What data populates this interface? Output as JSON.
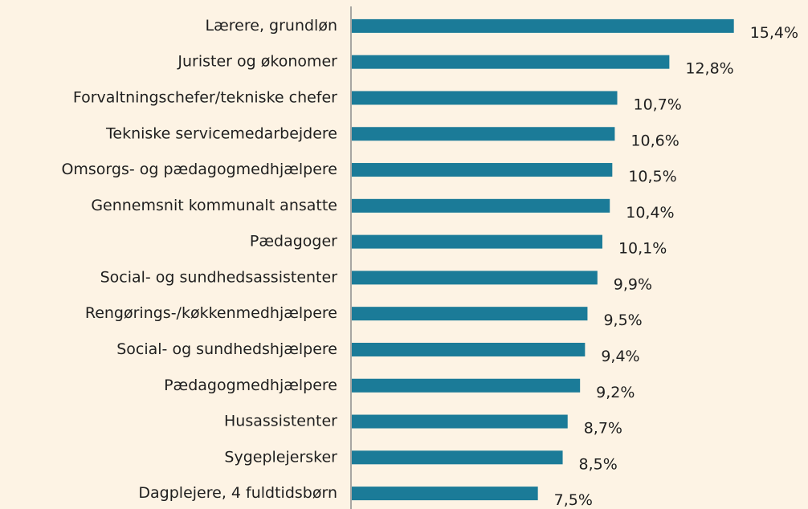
{
  "chart_data": {
    "type": "bar",
    "orientation": "horizontal",
    "categories": [
      "Lærere, grundløn",
      "Jurister og økonomer",
      "Forvaltningschefer/tekniske chefer",
      "Tekniske servicemedarbejdere",
      "Omsorgs- og pædagogmedhjælpere",
      "Gennemsnit kommunalt ansatte",
      "Pædagoger",
      "Social- og sundhedsassistenter",
      "Rengørings-/køkkenmedhjælpere",
      "Social- og sundhedshjælpere",
      "Pædagogmedhjælpere",
      "Husassistenter",
      "Sygeplejersker",
      "Dagplejere, 4 fuldtidsbørn"
    ],
    "values": [
      15.4,
      12.8,
      10.7,
      10.6,
      10.5,
      10.4,
      10.1,
      9.9,
      9.5,
      9.4,
      9.2,
      8.7,
      8.5,
      7.5
    ],
    "value_labels": [
      "15,4%",
      "12,8%",
      "10,7%",
      "10,6%",
      "10,5%",
      "10,4%",
      "10,1%",
      "9,9%",
      "9,5%",
      "9,4%",
      "9,2%",
      "8,7%",
      "8,5%",
      "7,5%"
    ],
    "color": "#1b7b98",
    "xlim": [
      0,
      18
    ]
  }
}
